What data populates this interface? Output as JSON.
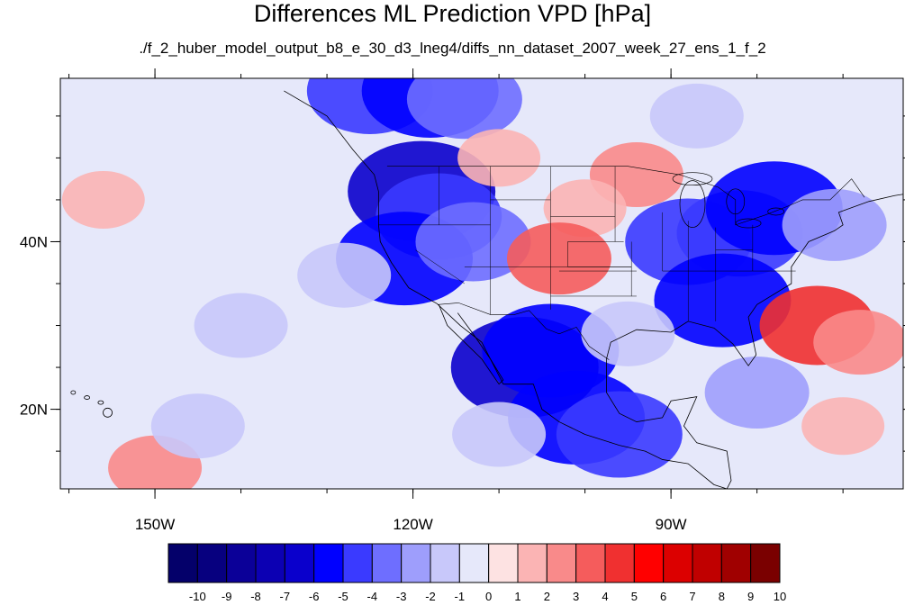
{
  "title": "Differences ML Prediction VPD [hPa]",
  "subtitle": "./f_2_huber_model_output_b8_e_30_d3_lneg4/diffs_nn_dataset_2007_week_27_ens_1_f_2",
  "map": {
    "lon_range": [
      -161,
      -63
    ],
    "lat_range": [
      10.5,
      59.5
    ],
    "lon_ticks": [
      {
        "value": -150,
        "label": "150W"
      },
      {
        "value": -120,
        "label": "120W"
      },
      {
        "value": -90,
        "label": "90W"
      }
    ],
    "lat_ticks": [
      {
        "value": 40,
        "label": "40N"
      },
      {
        "value": 20,
        "label": "20N"
      }
    ],
    "background_value": -0.5
  },
  "colorbar": {
    "levels": [
      -10,
      -9,
      -8,
      -7,
      -6,
      -5,
      -4,
      -3,
      -2,
      -1,
      0,
      1,
      2,
      3,
      4,
      5,
      6,
      7,
      8,
      9,
      10
    ],
    "labels": [
      "-10",
      "-9",
      "-8",
      "-7",
      "-6",
      "-5",
      "-4",
      "-3",
      "-2",
      "-1",
      "0",
      "1",
      "2",
      "3",
      "4",
      "5",
      "6",
      "7",
      "8",
      "9",
      "10"
    ],
    "colors": [
      "#04006a",
      "#07007f",
      "#0b0098",
      "#0c00b3",
      "#0a00cc",
      "#0000ff",
      "#3a3aff",
      "#6e6eff",
      "#9e9efc",
      "#c8c8fa",
      "#e6e8fa",
      "#fde2e2",
      "#fbb4b4",
      "#f98a8a",
      "#f55c5c",
      "#f03030",
      "#ff0000",
      "#dc0000",
      "#c00000",
      "#a00000",
      "#7a0000"
    ]
  },
  "regions": [
    {
      "lon": -125,
      "lat": 58,
      "value": -5
    },
    {
      "lon": -118,
      "lat": 58,
      "value": -6
    },
    {
      "lon": -114,
      "lat": 57,
      "value": -4
    },
    {
      "lon": -119,
      "lat": 46,
      "value": -7
    },
    {
      "lon": -117,
      "lat": 43,
      "value": -5
    },
    {
      "lon": -121,
      "lat": 38,
      "value": -6
    },
    {
      "lon": -113,
      "lat": 40,
      "value": -4
    },
    {
      "lon": -107,
      "lat": 25,
      "value": -7
    },
    {
      "lon": -104,
      "lat": 27,
      "value": -6
    },
    {
      "lon": -101,
      "lat": 19,
      "value": -6
    },
    {
      "lon": -96,
      "lat": 17,
      "value": -5
    },
    {
      "lon": -88,
      "lat": 40,
      "value": -5
    },
    {
      "lon": -82,
      "lat": 41,
      "value": -5
    },
    {
      "lon": -84,
      "lat": 33,
      "value": -6
    },
    {
      "lon": -78,
      "lat": 44,
      "value": -6
    },
    {
      "lon": -71,
      "lat": 42,
      "value": -3
    },
    {
      "lon": -94,
      "lat": 48,
      "value": 2
    },
    {
      "lon": -100,
      "lat": 44,
      "value": 1
    },
    {
      "lon": -103,
      "lat": 38,
      "value": 3
    },
    {
      "lon": -73,
      "lat": 30,
      "value": 4
    },
    {
      "lon": -68,
      "lat": 28,
      "value": 2
    },
    {
      "lon": -110,
      "lat": 50,
      "value": 1
    },
    {
      "lon": -156,
      "lat": 45,
      "value": 1
    },
    {
      "lon": -150,
      "lat": 13,
      "value": 2
    },
    {
      "lon": -70,
      "lat": 18,
      "value": 1
    },
    {
      "lon": -140,
      "lat": 30,
      "value": -2
    },
    {
      "lon": -128,
      "lat": 36,
      "value": -2
    },
    {
      "lon": -145,
      "lat": 18,
      "value": -2
    },
    {
      "lon": -120,
      "lat": 20,
      "value": -1
    },
    {
      "lon": -110,
      "lat": 17,
      "value": -2
    },
    {
      "lon": -95,
      "lat": 29,
      "value": -2
    },
    {
      "lon": -80,
      "lat": 22,
      "value": -3
    },
    {
      "lon": -87,
      "lat": 55,
      "value": -2
    },
    {
      "lon": -75,
      "lat": 55,
      "value": -1
    }
  ]
}
